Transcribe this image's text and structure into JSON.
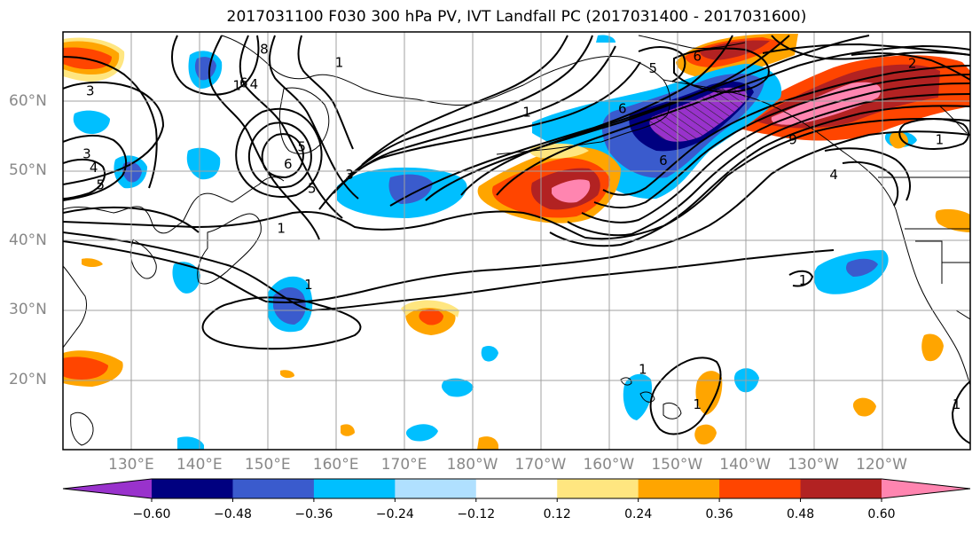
{
  "title": "2017031100 F030 300 hPa PV, IVT Landfall PC (2017031400 - 2017031600)",
  "lat_labels": [
    {
      "text": "60°N",
      "lat": 60
    },
    {
      "text": "50°N",
      "lat": 50
    },
    {
      "text": "40°N",
      "lat": 40
    },
    {
      "text": "30°N",
      "lat": 30
    },
    {
      "text": "20°N",
      "lat": 20
    }
  ],
  "lon_labels": [
    {
      "text": "130°E",
      "lon": 130
    },
    {
      "text": "140°E",
      "lon": 140
    },
    {
      "text": "150°E",
      "lon": 150
    },
    {
      "text": "160°E",
      "lon": 160
    },
    {
      "text": "170°E",
      "lon": 170
    },
    {
      "text": "180°W",
      "lon": 180
    },
    {
      "text": "170°W",
      "lon": 190
    },
    {
      "text": "160°W",
      "lon": 200
    },
    {
      "text": "150°W",
      "lon": 210
    },
    {
      "text": "140°W",
      "lon": 220
    },
    {
      "text": "130°W",
      "lon": 230
    },
    {
      "text": "120°W",
      "lon": 240
    }
  ],
  "map_extent": {
    "lon_min": 120,
    "lon_max": 253,
    "lat_min": 10,
    "lat_max": 70
  },
  "colorbar": {
    "colors": [
      "#9932cc",
      "#000080",
      "#3a5bcd",
      "#00bfff",
      "#b0e0ff",
      "#ffffff",
      "#ffe680",
      "#ffa500",
      "#ff4500",
      "#b22222",
      "#ff85b0"
    ],
    "ticks": [
      {
        "text": "−0.60",
        "boundary": 1
      },
      {
        "text": "−0.48",
        "boundary": 2
      },
      {
        "text": "−0.36",
        "boundary": 3
      },
      {
        "text": "−0.24",
        "boundary": 4
      },
      {
        "text": "−0.12",
        "boundary": 5
      },
      {
        "text": "0.12",
        "boundary": 6
      },
      {
        "text": "0.24",
        "boundary": 7
      },
      {
        "text": "0.36",
        "boundary": 8
      },
      {
        "text": "0.48",
        "boundary": 9
      },
      {
        "text": "0.60",
        "boundary": 10
      }
    ]
  },
  "contour_labels": [
    {
      "text": "1",
      "lon": 156,
      "lat": 33.7
    },
    {
      "text": "1",
      "lon": 152,
      "lat": 41.8
    },
    {
      "text": "1",
      "lon": 228.5,
      "lat": 34.3
    },
    {
      "text": "1",
      "lon": 205,
      "lat": 21.5
    },
    {
      "text": "1",
      "lon": 213,
      "lat": 16.5
    },
    {
      "text": "1",
      "lon": 251,
      "lat": 16.5
    },
    {
      "text": "1",
      "lon": 248.5,
      "lat": 54.5
    },
    {
      "text": "1",
      "lon": 160.5,
      "lat": 65.6
    },
    {
      "text": "1",
      "lon": 145.5,
      "lat": 62.3
    },
    {
      "text": "1",
      "lon": 188,
      "lat": 58.5
    },
    {
      "text": "2",
      "lon": 244.5,
      "lat": 65.5
    },
    {
      "text": "3",
      "lon": 124,
      "lat": 61.5
    },
    {
      "text": "3",
      "lon": 123.5,
      "lat": 52.5
    },
    {
      "text": "3",
      "lon": 162,
      "lat": 49.5
    },
    {
      "text": "4",
      "lon": 124.5,
      "lat": 50.5
    },
    {
      "text": "4",
      "lon": 148,
      "lat": 62.5
    },
    {
      "text": "4",
      "lon": 233,
      "lat": 49.5
    },
    {
      "text": "5",
      "lon": 125.5,
      "lat": 48
    },
    {
      "text": "5",
      "lon": 155,
      "lat": 53.5
    },
    {
      "text": "5",
      "lon": 156.5,
      "lat": 47.5
    },
    {
      "text": "5",
      "lon": 206.5,
      "lat": 64.8
    },
    {
      "text": "6",
      "lon": 146.5,
      "lat": 62.7
    },
    {
      "text": "6",
      "lon": 213,
      "lat": 66.5
    },
    {
      "text": "6",
      "lon": 153,
      "lat": 51
    },
    {
      "text": "6",
      "lon": 202,
      "lat": 59
    },
    {
      "text": "6",
      "lon": 208,
      "lat": 51.5
    },
    {
      "text": "8",
      "lon": 149.5,
      "lat": 67.5
    },
    {
      "text": "9",
      "lon": 227,
      "lat": 54.5
    }
  ]
}
